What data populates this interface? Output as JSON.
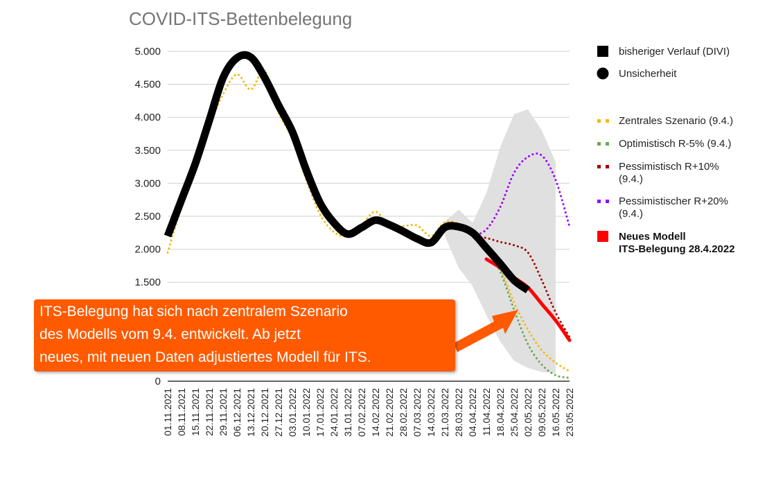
{
  "chart_data": {
    "type": "line",
    "title": "COVID-ITS-Bettenbelegung",
    "xlabel": "",
    "ylabel": "",
    "ylim": [
      0,
      5000
    ],
    "grid": true,
    "legend_position": "right",
    "y_ticks": [
      "0",
      "1.500",
      "2.000",
      "2.500",
      "3.000",
      "3.500",
      "4.000",
      "4.500",
      "5.000"
    ],
    "categories": [
      "01.11.2021",
      "08.11.2021",
      "15.11.2021",
      "22.11.2021",
      "29.11.2021",
      "06.12.2021",
      "13.12.2021",
      "20.12.2021",
      "27.12.2021",
      "03.01.2022",
      "10.01.2022",
      "17.01.2022",
      "24.01.2022",
      "31.01.2022",
      "07.02.2022",
      "14.02.2022",
      "21.02.2022",
      "28.02.2022",
      "07.03.2022",
      "14.03.2022",
      "21.03.2022",
      "28.03.2022",
      "04.04.2022",
      "11.04.2022",
      "18.04.2022",
      "25.04.2022",
      "02.05.2022",
      "09.05.2022",
      "16.05.2022",
      "23.05.2022"
    ],
    "series": [
      {
        "name": "bisheriger Verlauf (DIVI)",
        "color": "#000000",
        "style": "solid-thick",
        "values": [
          2200,
          2750,
          3300,
          3950,
          4600,
          4900,
          4910,
          4600,
          4180,
          3780,
          3200,
          2700,
          2400,
          2230,
          2330,
          2440,
          2370,
          2270,
          2160,
          2100,
          2330,
          2340,
          2250,
          2020,
          1780,
          1530,
          1380,
          null,
          null,
          null
        ]
      },
      {
        "name": "Unsicherheit (obere Grenze)",
        "color": "#e0e0e0",
        "style": "band",
        "values": [
          null,
          null,
          null,
          null,
          null,
          null,
          null,
          null,
          null,
          null,
          null,
          null,
          null,
          null,
          null,
          null,
          null,
          null,
          null,
          null,
          2420,
          2600,
          2400,
          2850,
          3550,
          4050,
          4120,
          3800,
          3320,
          null
        ]
      },
      {
        "name": "Unsicherheit (untere Grenze)",
        "color": "#e0e0e0",
        "style": "band",
        "values": [
          null,
          null,
          null,
          null,
          null,
          null,
          null,
          null,
          null,
          null,
          null,
          null,
          null,
          null,
          null,
          null,
          null,
          null,
          null,
          null,
          2200,
          1720,
          1440,
          1000,
          600,
          310,
          200,
          140,
          120,
          null
        ]
      },
      {
        "name": "Zentrales Szenario (9.4.)",
        "color": "#f2b90f",
        "style": "dotted",
        "values": [
          1950,
          2650,
          3250,
          3850,
          4350,
          4650,
          4420,
          4700,
          4070,
          3680,
          3050,
          2530,
          2260,
          2200,
          2370,
          2570,
          2340,
          2350,
          2360,
          2200,
          2410,
          2390,
          2280,
          2050,
          1720,
          1190,
          780,
          470,
          280,
          150
        ]
      },
      {
        "name": "Optimistisch R-5% (9.4.)",
        "color": "#6aa84f",
        "style": "dotted",
        "values": [
          null,
          null,
          null,
          null,
          null,
          null,
          null,
          null,
          null,
          null,
          null,
          null,
          null,
          null,
          null,
          null,
          null,
          null,
          null,
          null,
          null,
          null,
          2200,
          1980,
          1660,
          1080,
          560,
          250,
          90,
          50
        ]
      },
      {
        "name": "Pessimistisch R+10% (9.4.)",
        "color": "#a30000",
        "style": "dotted",
        "values": [
          null,
          null,
          null,
          null,
          null,
          null,
          null,
          null,
          null,
          null,
          null,
          null,
          null,
          null,
          null,
          null,
          null,
          null,
          null,
          null,
          null,
          null,
          2200,
          2170,
          2110,
          2060,
          1950,
          1530,
          1040,
          670
        ]
      },
      {
        "name": "Pessimistischer R+20% (9.4.)",
        "color": "#9900ff",
        "style": "dotted",
        "values": [
          null,
          null,
          null,
          null,
          null,
          null,
          null,
          null,
          null,
          null,
          null,
          null,
          null,
          null,
          null,
          null,
          null,
          null,
          null,
          null,
          null,
          null,
          2200,
          2300,
          2640,
          3160,
          3400,
          3420,
          3050,
          2340
        ]
      },
      {
        "name": "Neues Modell ITS-Belegung 28.4.2022",
        "color": "#ff0000",
        "style": "solid",
        "values": [
          null,
          null,
          null,
          null,
          null,
          null,
          null,
          null,
          null,
          null,
          null,
          null,
          null,
          null,
          null,
          null,
          null,
          null,
          null,
          null,
          null,
          null,
          null,
          1850,
          1720,
          1570,
          1420,
          1170,
          920,
          620
        ]
      }
    ],
    "annotations": [
      "ITS-Belegung hat sich nach zentralem Szenario",
      "des Modells vom 9.4. entwickelt. Ab jetzt",
      "neues, mit neuen Daten adjustiertes Modell für ITS."
    ]
  },
  "legend": [
    {
      "label_lines": [
        "bisheriger Verlauf (DIVI)"
      ],
      "marker": "square",
      "color": "#000000",
      "bold": false
    },
    {
      "label_lines": [
        "Unsicherheit"
      ],
      "marker": "circle",
      "color": "#000000",
      "bold": false
    },
    {
      "label_lines": [
        "Zentrales Szenario (9.4.)"
      ],
      "marker": "dots",
      "color": "#f2b90f",
      "bold": false
    },
    {
      "label_lines": [
        "Optimistisch R-5% (9.4.)"
      ],
      "marker": "dots",
      "color": "#6aa84f",
      "bold": false
    },
    {
      "label_lines": [
        "Pessimistisch R+10%",
        "(9.4.)"
      ],
      "marker": "dots",
      "color": "#a30000",
      "bold": false
    },
    {
      "label_lines": [
        "Pessimistischer R+20%",
        "(9.4.)"
      ],
      "marker": "dots",
      "color": "#9900ff",
      "bold": false
    },
    {
      "label_lines": [
        "Neues Modell",
        "ITS-Belegung 28.4.2022"
      ],
      "marker": "square",
      "color": "#ff0000",
      "bold": true
    }
  ],
  "callout": {
    "lines": [
      "ITS-Belegung hat sich nach zentralem Szenario",
      "des Modells vom 9.4. entwickelt. Ab jetzt",
      "neues, mit neuen Daten adjustiertes Modell für ITS."
    ],
    "color": "#ff5a00"
  }
}
